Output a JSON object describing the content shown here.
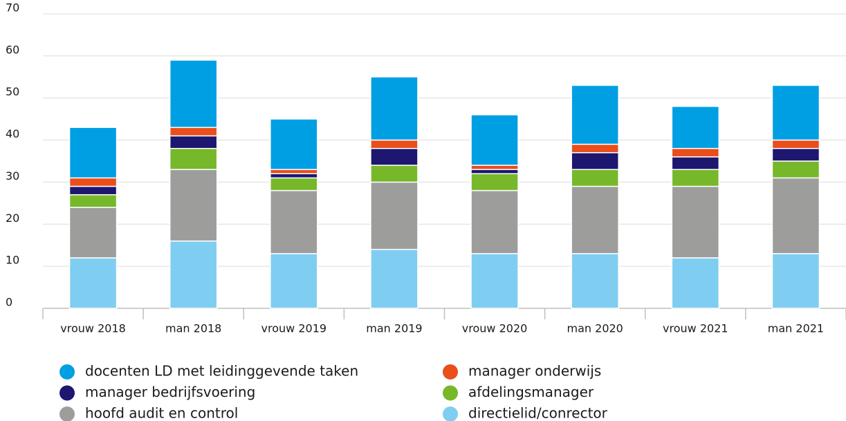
{
  "chart_data": {
    "type": "stacked_bar",
    "categories": [
      "vrouw 2018",
      "man 2018",
      "vrouw 2019",
      "man 2019",
      "vrouw 2020",
      "man 2020",
      "vrouw 2021",
      "man 2021"
    ],
    "series": [
      {
        "name": "directielid/conrector",
        "color": "#80cdf2",
        "values": [
          12,
          16,
          13,
          14,
          13,
          13,
          12,
          13
        ]
      },
      {
        "name": "hoofd audit en control",
        "color": "#9d9d9c",
        "values": [
          12,
          17,
          15,
          16,
          15,
          16,
          17,
          18
        ]
      },
      {
        "name": "afdelingsmanager",
        "color": "#76b82a",
        "values": [
          3,
          5,
          3,
          4,
          4,
          4,
          4,
          4
        ]
      },
      {
        "name": "manager bedrijfsvoering",
        "color": "#1d1770",
        "values": [
          2,
          3,
          1,
          4,
          1,
          4,
          3,
          3
        ]
      },
      {
        "name": "manager onderwijs",
        "color": "#e94e1b",
        "values": [
          2,
          2,
          1,
          2,
          1,
          2,
          2,
          2
        ]
      },
      {
        "name": "docenten LD met leidinggevende taken",
        "color": "#009fe3",
        "values": [
          12,
          16,
          12,
          15,
          12,
          14,
          10,
          13
        ]
      }
    ],
    "ylim": [
      0,
      70
    ],
    "yticks": [
      0,
      10,
      20,
      30,
      40,
      50,
      60,
      70
    ],
    "grid": true,
    "legend": "bottom"
  }
}
